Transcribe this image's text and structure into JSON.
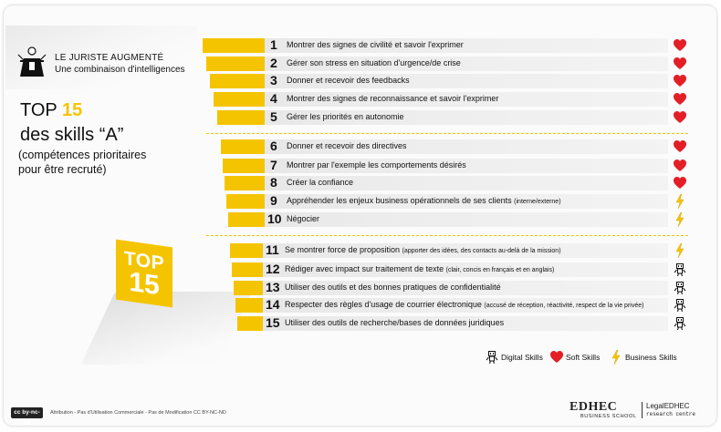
{
  "brand": {
    "title": "LE JURISTE AUGMENTÉ",
    "subtitle": "Une combinaison d'intelligences"
  },
  "heading": {
    "prefix": "TOP ",
    "highlight": "15",
    "line2": "des skills “A”",
    "subtitle": "(compétences prioritaires pour être recruté)"
  },
  "badge": {
    "line1": "TOP",
    "line2": "15"
  },
  "skills": [
    {
      "num": "1",
      "label": "Montrer des signes de civilité et savoir l'exprimer",
      "note": "",
      "type": "soft"
    },
    {
      "num": "2",
      "label": "Gérer son stress en situation d'urgence/de crise",
      "note": "",
      "type": "soft"
    },
    {
      "num": "3",
      "label": "Donner et recevoir des feedbacks",
      "note": "",
      "type": "soft"
    },
    {
      "num": "4",
      "label": "Montrer des signes de reconnaissance et savoir l'exprimer",
      "note": "",
      "type": "soft"
    },
    {
      "num": "5",
      "label": "Gérer les priorités en autonomie",
      "note": "",
      "type": "soft"
    },
    {
      "num": "6",
      "label": "Donner et recevoir des directives",
      "note": "",
      "type": "soft"
    },
    {
      "num": "7",
      "label": "Montrer par l'exemple les comportements désirés",
      "note": "",
      "type": "soft"
    },
    {
      "num": "8",
      "label": "Créer la confiance",
      "note": "",
      "type": "soft"
    },
    {
      "num": "9",
      "label": "Appréhender les enjeux business opérationnels de ses clients",
      "note": "(interne/externe)",
      "type": "business"
    },
    {
      "num": "10",
      "label": "Négocier",
      "note": "",
      "type": "business"
    },
    {
      "num": "11",
      "label": "Se montrer force de proposition",
      "note": "(apporter des idées, des contacts au-delà de la mission)",
      "type": "business"
    },
    {
      "num": "12",
      "label": "Rédiger avec impact sur traitement de texte",
      "note": "(clair, concis en français et en anglais)",
      "type": "digital"
    },
    {
      "num": "13",
      "label": "Utiliser des outils et des bonnes pratiques de confidentialité",
      "note": "",
      "type": "digital"
    },
    {
      "num": "14",
      "label": "Respecter des règles d'usage de courrier électronique",
      "note": "(accusé de réception, réactivité, respect de la vie privée)",
      "type": "digital"
    },
    {
      "num": "15",
      "label": "Utiliser des outils de recherche/bases de données juridiques",
      "note": "",
      "type": "digital"
    }
  ],
  "legend": {
    "digital": "Digital Skills",
    "soft": "Soft Skills",
    "business": "Business Skills"
  },
  "footer": {
    "cc_badge": "cc by-nc-nd",
    "license": "Attribution - Pas d'Utilisation Commerciale - Pas de Modification CC BY-NC-ND",
    "school": "EDHEC",
    "school_sub": "BUSINESS SCHOOL",
    "centre_title": "LegalEDHEC",
    "centre_sub": "research centre"
  },
  "colors": {
    "accent": "#f5c400",
    "heart": "#e41e26",
    "text": "#111111"
  },
  "icons": {
    "soft": "heart-icon",
    "business": "lightning-icon",
    "digital": "robot-icon",
    "logo": "jurist-figure-icon"
  }
}
